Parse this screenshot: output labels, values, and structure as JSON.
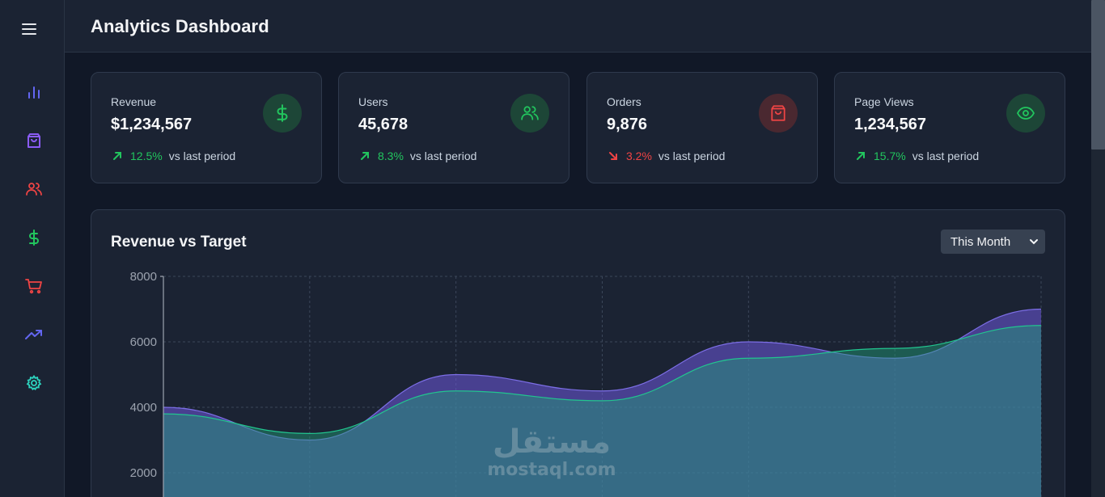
{
  "header": {
    "title": "Analytics Dashboard"
  },
  "sidebar": {
    "menu_icon": "hamburger-menu-icon",
    "items": [
      {
        "icon": "bar-chart-icon",
        "color": "#6366f1"
      },
      {
        "icon": "shopping-bag-icon",
        "color": "#8b5cf6"
      },
      {
        "icon": "users-icon",
        "color": "#ef4444"
      },
      {
        "icon": "dollar-icon",
        "color": "#22c55e"
      },
      {
        "icon": "cart-icon",
        "color": "#ef4444"
      },
      {
        "icon": "trending-up-icon",
        "color": "#6366f1"
      },
      {
        "icon": "settings-icon",
        "color": "#2dd4bf"
      }
    ]
  },
  "stats": [
    {
      "label": "Revenue",
      "value": "$1,234,567",
      "change": "12.5%",
      "direction": "up",
      "vs": "vs last period",
      "icon": "dollar-icon"
    },
    {
      "label": "Users",
      "value": "45,678",
      "change": "8.3%",
      "direction": "up",
      "vs": "vs last period",
      "icon": "users-icon"
    },
    {
      "label": "Orders",
      "value": "9,876",
      "change": "3.2%",
      "direction": "down",
      "vs": "vs last period",
      "icon": "shopping-bag-icon"
    },
    {
      "label": "Page Views",
      "value": "1,234,567",
      "change": "15.7%",
      "direction": "up",
      "vs": "vs last period",
      "icon": "eye-icon"
    }
  ],
  "colors": {
    "up": "#22c55e",
    "down": "#ef4444",
    "series_a": "#7c6ee6",
    "series_b": "#22c58f"
  },
  "chart": {
    "title": "Revenue vs Target",
    "period": "This Month"
  },
  "chart_data": {
    "type": "area",
    "title": "Revenue vs Target",
    "x": [
      0,
      1,
      2,
      3,
      4,
      5,
      6
    ],
    "series": [
      {
        "values": [
          4000,
          3000,
          5000,
          4500,
          6000,
          5500,
          7000
        ],
        "color": "#7c6ee6"
      },
      {
        "values": [
          3800,
          3200,
          4500,
          4200,
          5500,
          5800,
          6500
        ],
        "color": "#22c58f"
      }
    ],
    "yticks": [
      "8000",
      "6000",
      "4000",
      "2000"
    ],
    "ylim": [
      0,
      8000
    ],
    "grid": true
  },
  "watermark": {
    "arabic": "مستقل",
    "latin": "mostaql.com"
  }
}
